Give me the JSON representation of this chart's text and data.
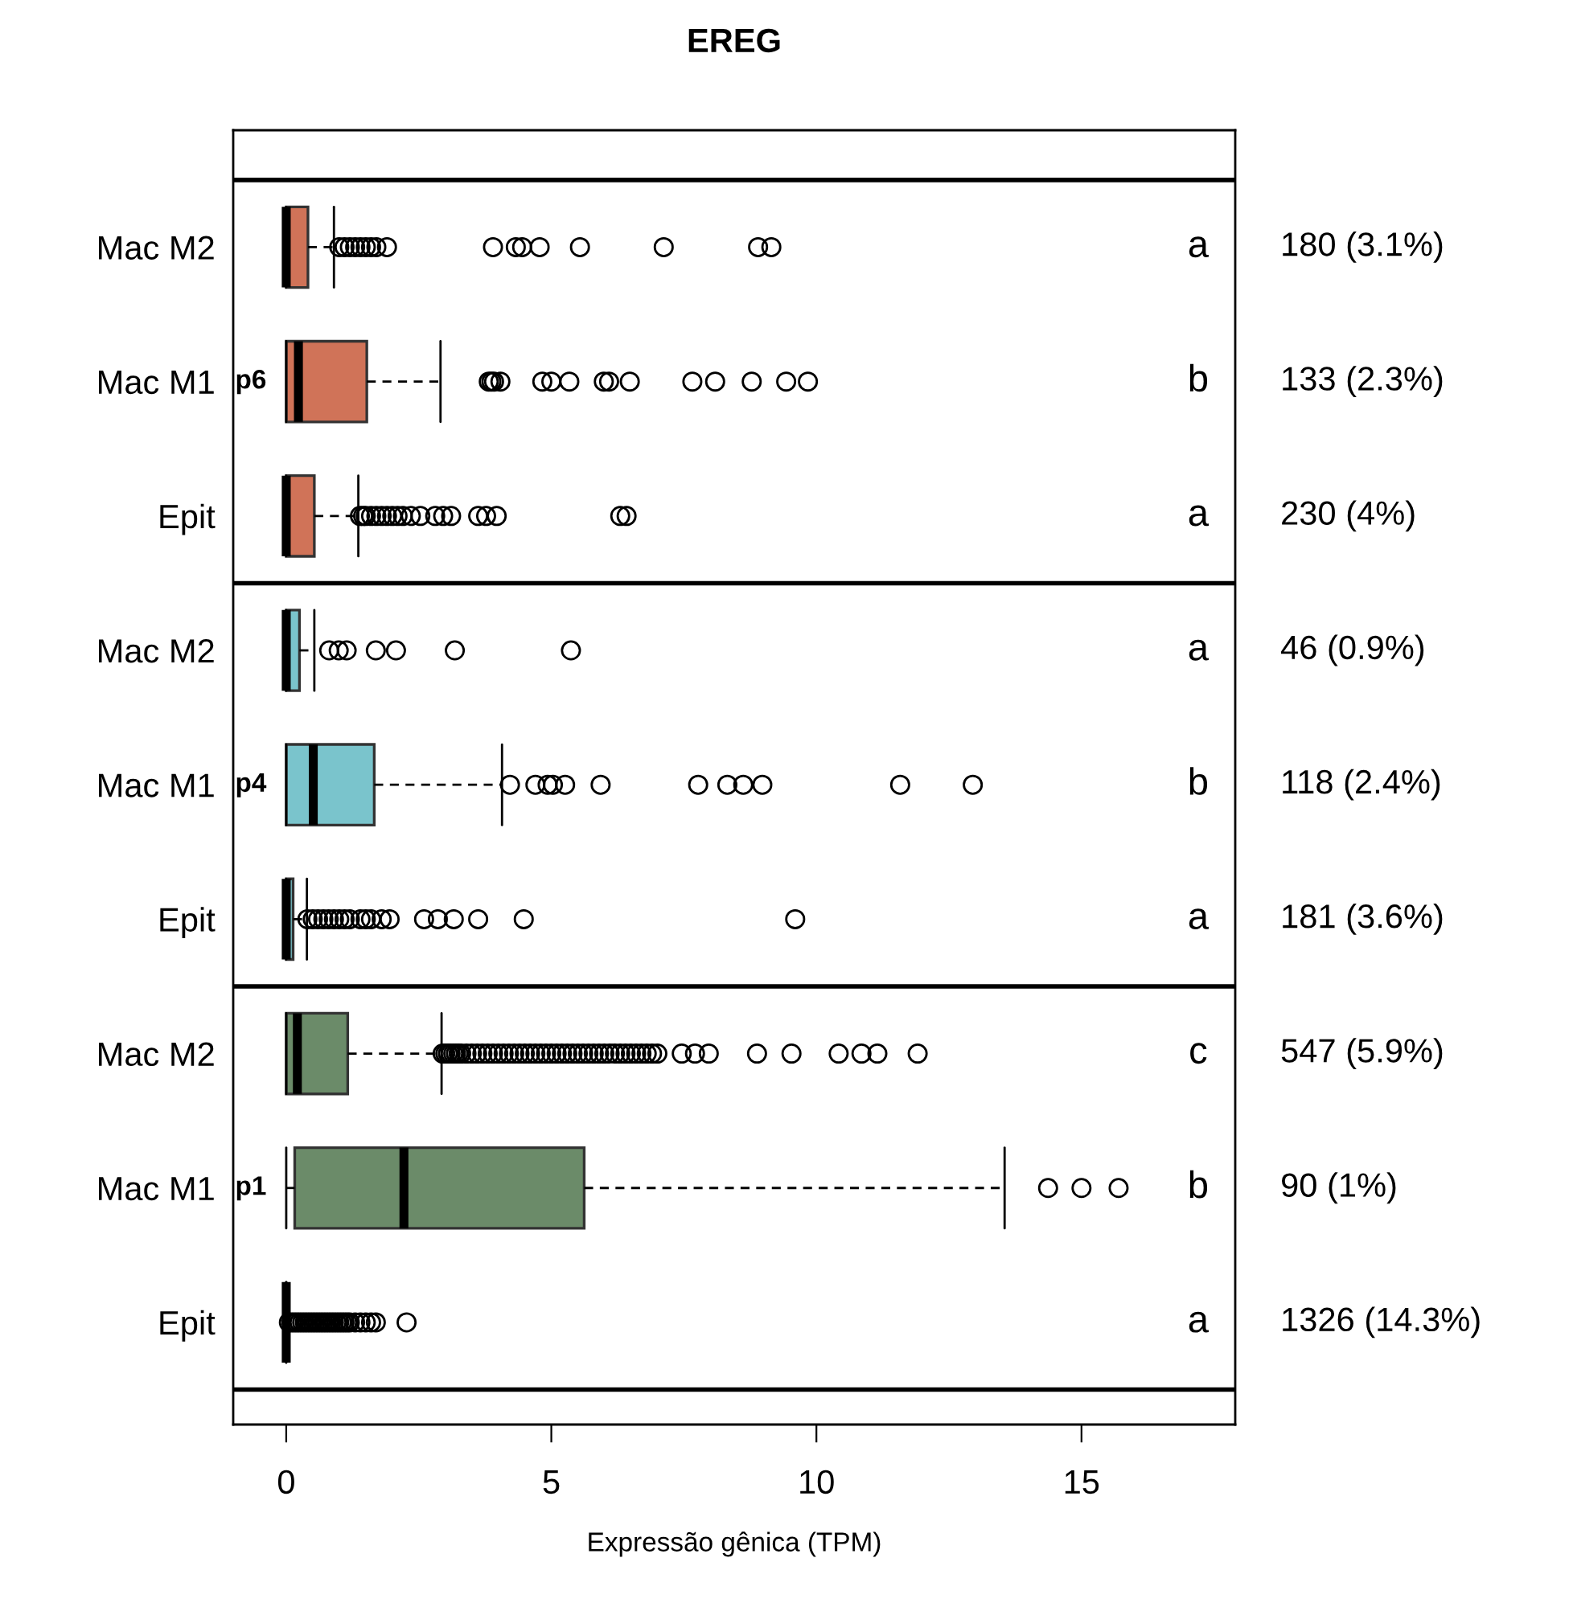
{
  "chart_data": {
    "type": "box",
    "title": "EREG",
    "xlabel": "Expressão gênica (TPM)",
    "orientation": "horizontal",
    "categories": [
      "Mac M2",
      "Mac M1",
      "Epit",
      "Mac M2",
      "Mac M1",
      "Epit",
      "Mac M2",
      "Mac M1",
      "Epit"
    ],
    "colors": [
      "#d07358",
      "#d07358",
      "#d07358",
      "#7ac4cc",
      "#7ac4cc",
      "#7ac4cc",
      "#6b8b69",
      "#6b8b69",
      "#6b8b69"
    ],
    "boxes": [
      {
        "low": 0,
        "q1": 0,
        "median": 0,
        "q3": 0.41,
        "high": 0.9,
        "outliers": [
          1.0,
          1.1,
          1.2,
          1.3,
          1.4,
          1.5,
          1.6,
          1.7,
          1.9,
          3.9,
          4.33,
          4.45,
          4.78,
          5.54,
          7.12,
          8.9,
          9.15
        ]
      },
      {
        "low": 0,
        "q1": 0,
        "median": 0.23,
        "q3": 1.52,
        "high": 2.91,
        "outliers": [
          3.82,
          3.87,
          3.92,
          4.04,
          4.83,
          5.0,
          5.34,
          5.99,
          6.09,
          6.48,
          7.66,
          8.09,
          8.78,
          9.43,
          9.84
        ]
      },
      {
        "low": 0,
        "q1": 0,
        "median": 0,
        "q3": 0.53,
        "high": 1.36,
        "outliers": [
          1.39,
          1.45,
          1.5,
          1.6,
          1.7,
          1.8,
          1.9,
          2.0,
          2.1,
          2.2,
          2.35,
          2.53,
          2.81,
          2.96,
          3.11,
          3.62,
          3.77,
          3.97,
          6.3,
          6.42
        ]
      },
      {
        "low": 0,
        "q1": 0,
        "median": 0,
        "q3": 0.25,
        "high": 0.53,
        "outliers": [
          0.81,
          0.99,
          1.14,
          1.69,
          2.07,
          3.18,
          5.37
        ]
      },
      {
        "low": 0,
        "q1": 0,
        "median": 0.51,
        "q3": 1.66,
        "high": 4.07,
        "outliers": [
          4.22,
          4.7,
          4.93,
          5.03,
          5.26,
          5.93,
          7.77,
          8.32,
          8.62,
          8.98,
          11.58,
          12.95
        ]
      },
      {
        "low": 0,
        "q1": 0,
        "median": 0,
        "q3": 0.13,
        "high": 0.39,
        "outliers": [
          0.4,
          0.5,
          0.6,
          0.7,
          0.8,
          0.9,
          1.0,
          1.1,
          1.2,
          1.4,
          1.5,
          1.6,
          1.8,
          1.95,
          2.6,
          2.86,
          3.16,
          3.62,
          4.48,
          9.6
        ]
      },
      {
        "low": 0,
        "q1": 0,
        "median": 0.21,
        "q3": 1.16,
        "high": 2.93,
        "outliers": [
          2.95,
          3.0,
          3.05,
          3.1,
          3.15,
          3.2,
          3.25,
          3.3,
          3.4,
          3.5,
          3.6,
          3.7,
          3.8,
          3.9,
          4.0,
          4.1,
          4.2,
          4.3,
          4.4,
          4.5,
          4.6,
          4.7,
          4.8,
          4.9,
          5.0,
          5.1,
          5.2,
          5.3,
          5.4,
          5.5,
          5.6,
          5.7,
          5.8,
          5.9,
          6.0,
          6.1,
          6.2,
          6.3,
          6.4,
          6.5,
          6.6,
          6.7,
          6.8,
          6.9,
          7.0,
          7.46,
          7.71,
          7.97,
          8.88,
          9.53,
          10.42,
          10.85,
          11.15,
          11.91
        ]
      },
      {
        "low": 0,
        "q1": 0.16,
        "median": 2.22,
        "q3": 5.62,
        "high": 13.55,
        "outliers": [
          14.37,
          15.0,
          15.7
        ]
      },
      {
        "low": 0,
        "q1": 0,
        "median": 0,
        "q3": 0,
        "high": 0,
        "outliers": [
          0.05,
          0.1,
          0.15,
          0.2,
          0.25,
          0.3,
          0.35,
          0.4,
          0.45,
          0.5,
          0.55,
          0.6,
          0.65,
          0.7,
          0.75,
          0.8,
          0.85,
          0.9,
          0.95,
          1.0,
          1.05,
          1.1,
          1.15,
          1.2,
          1.3,
          1.4,
          1.5,
          1.6,
          1.69,
          2.27
        ]
      }
    ],
    "xlim": [
      -1.0,
      17.9
    ],
    "xticks": [
      0,
      5,
      10,
      15
    ],
    "grid": false,
    "annotations": [
      "a",
      "b",
      "a",
      "a",
      "b",
      "a",
      "c",
      "b",
      "a",
      "180 (3.1%)",
      "133 (2.3%)",
      "230 (4%)",
      "46 (0.9%)",
      "118 (2.4%)",
      "181 (3.6%)",
      "547 (5.9%)",
      "90 (1%)",
      "1326 (14.3%)",
      "p6",
      "p4",
      "p1"
    ]
  }
}
